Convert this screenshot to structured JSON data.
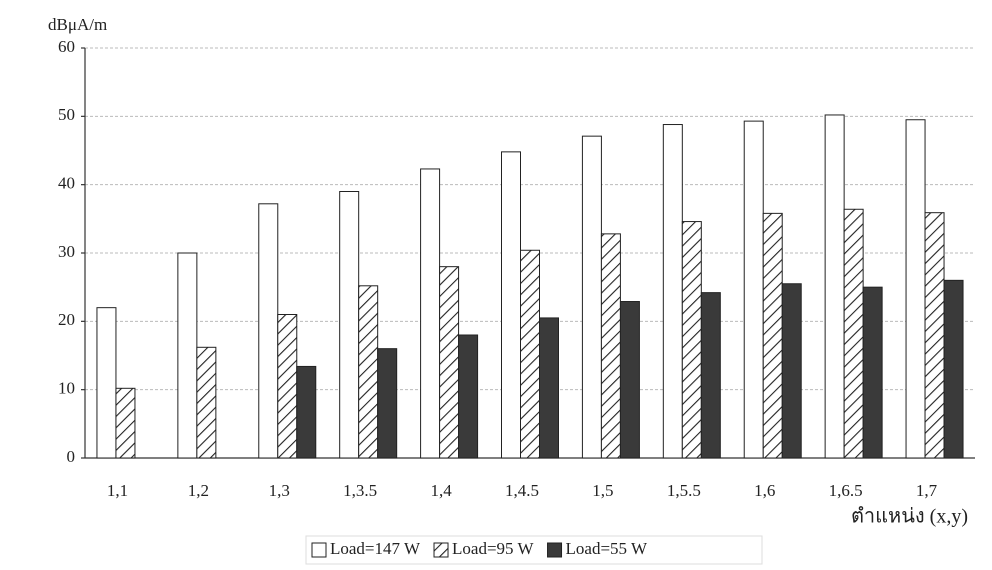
{
  "chart_data": {
    "type": "bar",
    "y_label": "dBμA/m",
    "x_label": "ตำแหน่ง (x,y)",
    "categories": [
      "1,1",
      "1,2",
      "1,3",
      "1,3.5",
      "1,4",
      "1,4.5",
      "1,5",
      "1,5.5",
      "1,6",
      "1,6.5",
      "1,7"
    ],
    "series": [
      {
        "name": "Load=147 W",
        "color": "#ffffff",
        "hatch": false,
        "values": [
          22,
          30,
          37.2,
          39,
          42.3,
          44.8,
          47.1,
          48.8,
          49.3,
          50.2,
          49.5
        ]
      },
      {
        "name": "Load=95 W",
        "color": "#ffffff",
        "hatch": true,
        "values": [
          10.2,
          16.2,
          21,
          25.2,
          28,
          30.4,
          32.8,
          34.6,
          35.8,
          36.4,
          35.9
        ]
      },
      {
        "name": "Load=55 W",
        "color": "#3a3a3a",
        "hatch": false,
        "values": [
          null,
          null,
          13.4,
          16,
          18,
          20.5,
          22.9,
          24.2,
          25.5,
          25,
          26
        ]
      }
    ],
    "ylim": [
      0,
      60
    ],
    "yticks": [
      0,
      10,
      20,
      30,
      40,
      50,
      60
    ],
    "grid": true,
    "legend": "bottom"
  }
}
